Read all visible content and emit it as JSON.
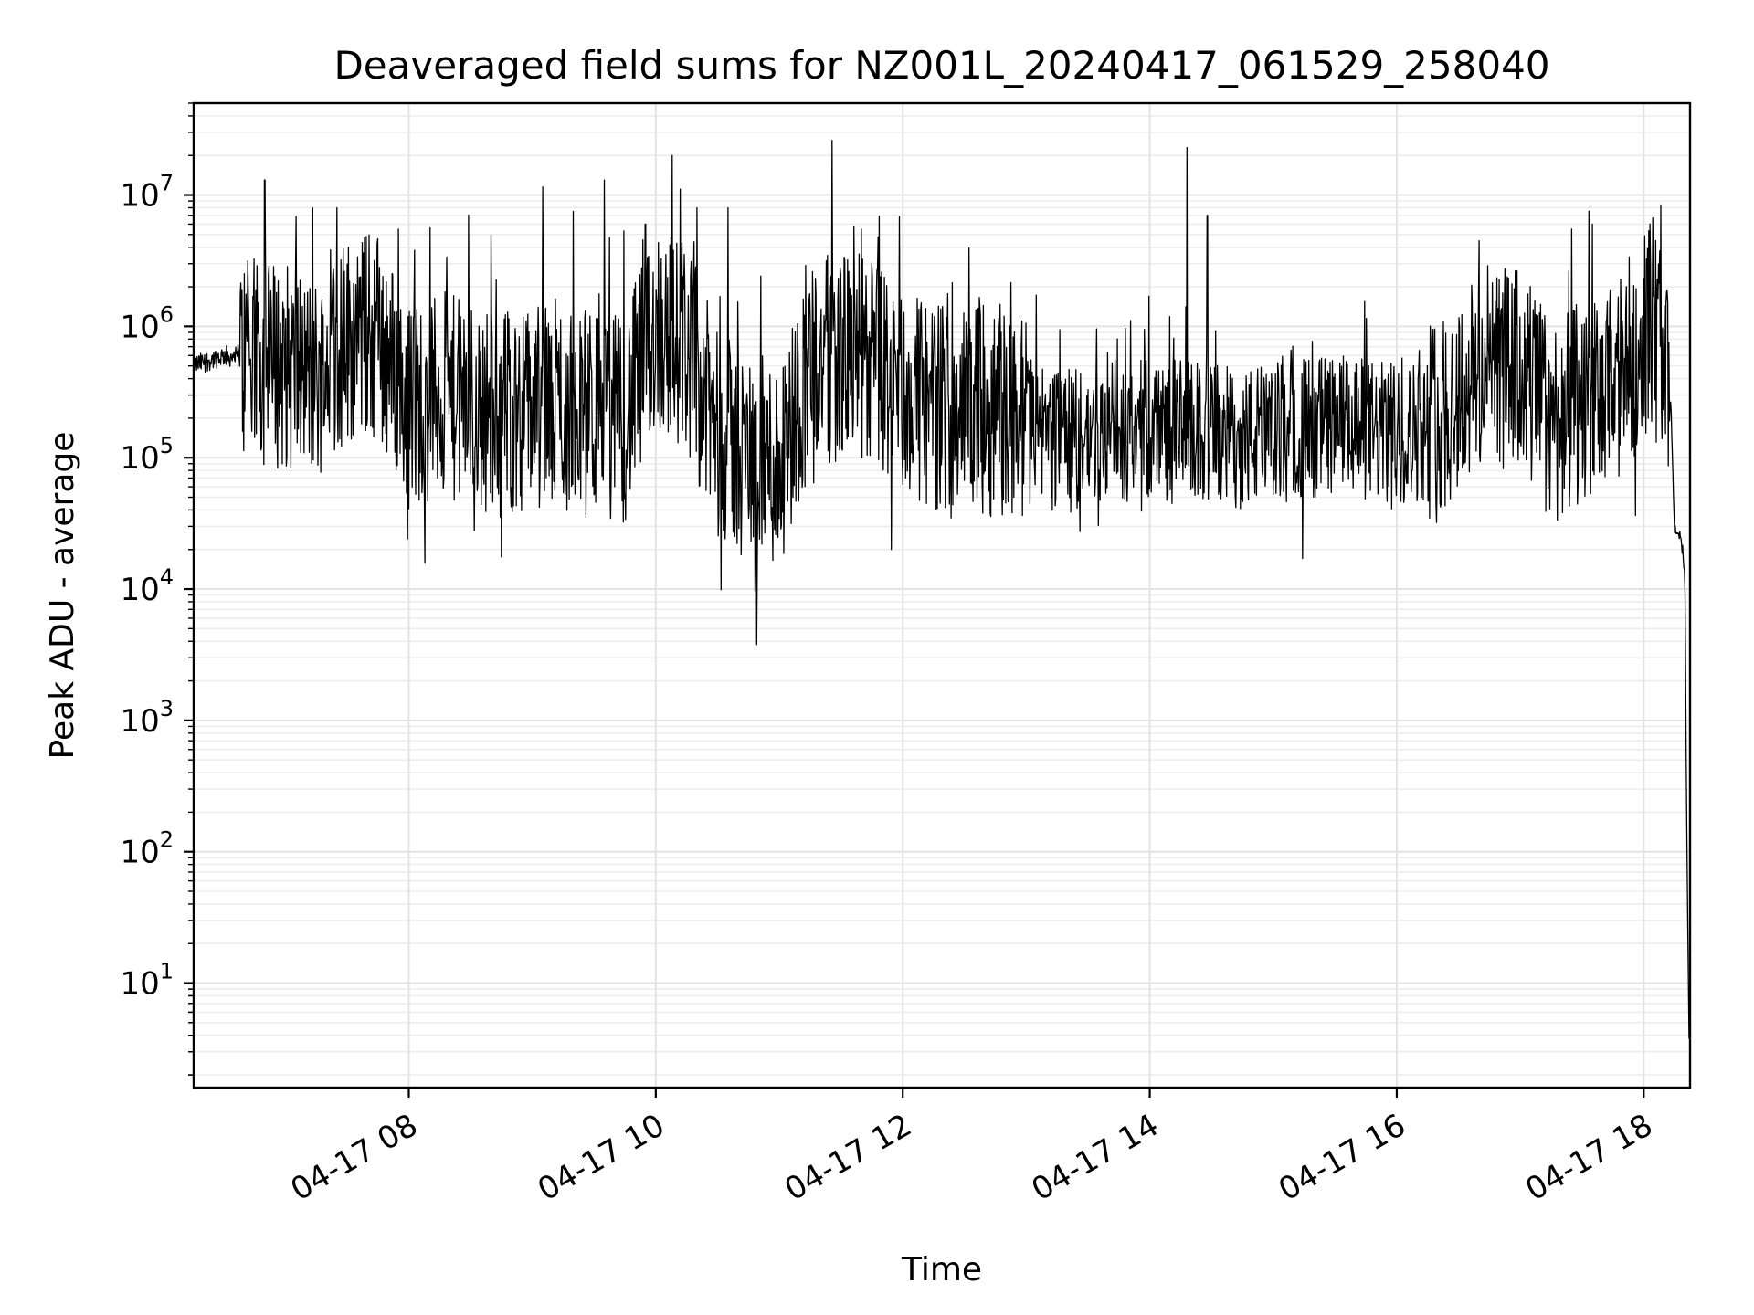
{
  "chart_data": {
    "type": "line",
    "title": "Deaveraged field sums for NZ001L_20240417_061529_258040",
    "xlabel": "Time",
    "ylabel": "Peak ADU - average",
    "yscale": "log",
    "ylim": [
      1.6,
      50000000
    ],
    "xlim": [
      "2024-04-17 06:15:29",
      "2024-04-17 18:22:30"
    ],
    "grid": true,
    "x_ticks": [
      "04-17 08",
      "04-17 10",
      "04-17 12",
      "04-17 14",
      "04-17 16",
      "04-17 18"
    ],
    "x_tick_times": [
      "2024-04-17 08:00",
      "2024-04-17 10:00",
      "2024-04-17 12:00",
      "2024-04-17 14:00",
      "2024-04-17 16:00",
      "2024-04-17 18:00"
    ],
    "y_ticks": [
      {
        "base": "10",
        "exp": "1",
        "value": 10
      },
      {
        "base": "10",
        "exp": "2",
        "value": 100
      },
      {
        "base": "10",
        "exp": "3",
        "value": 1000
      },
      {
        "base": "10",
        "exp": "4",
        "value": 10000
      },
      {
        "base": "10",
        "exp": "5",
        "value": 100000
      },
      {
        "base": "10",
        "exp": "6",
        "value": 1000000
      },
      {
        "base": "10",
        "exp": "7",
        "value": 10000000
      }
    ],
    "series": [
      {
        "color": "#000000",
        "points": [
          [
            "2024-04-17 06:15",
            500000
          ],
          [
            "2024-04-17 06:30",
            600000
          ],
          [
            "2024-04-17 06:45",
            550000
          ],
          [
            "2024-04-17 07:00",
            500000
          ],
          [
            "2024-04-17 07:15",
            400000
          ],
          [
            "2024-04-17 07:30",
            800000
          ],
          [
            "2024-04-17 07:45",
            900000
          ],
          [
            "2024-04-17 08:00",
            250000
          ],
          [
            "2024-04-17 08:15",
            300000
          ],
          [
            "2024-04-17 08:30",
            250000
          ],
          [
            "2024-04-17 08:45",
            220000
          ],
          [
            "2024-04-17 09:00",
            250000
          ],
          [
            "2024-04-17 09:15",
            220000
          ],
          [
            "2024-04-17 09:30",
            220000
          ],
          [
            "2024-04-17 09:45",
            200000
          ],
          [
            "2024-04-17 10:00",
            1000000
          ],
          [
            "2024-04-17 10:15",
            700000
          ],
          [
            "2024-04-17 10:30",
            150000
          ],
          [
            "2024-04-17 10:45",
            100000
          ],
          [
            "2024-04-17 11:00",
            90000
          ],
          [
            "2024-04-17 11:15",
            500000
          ],
          [
            "2024-04-17 11:30",
            600000
          ],
          [
            "2024-04-17 11:45",
            550000
          ],
          [
            "2024-04-17 12:00",
            300000
          ],
          [
            "2024-04-17 12:15",
            250000
          ],
          [
            "2024-04-17 12:30",
            250000
          ],
          [
            "2024-04-17 12:45",
            220000
          ],
          [
            "2024-04-17 13:00",
            200000
          ],
          [
            "2024-04-17 13:15",
            130000
          ],
          [
            "2024-04-17 13:30",
            140000
          ],
          [
            "2024-04-17 13:45",
            160000
          ],
          [
            "2024-04-17 14:00",
            170000
          ],
          [
            "2024-04-17 14:15",
            160000
          ],
          [
            "2024-04-17 14:30",
            150000
          ],
          [
            "2024-04-17 14:45",
            140000
          ],
          [
            "2024-04-17 15:00",
            150000
          ],
          [
            "2024-04-17 15:15",
            170000
          ],
          [
            "2024-04-17 15:30",
            180000
          ],
          [
            "2024-04-17 15:45",
            160000
          ],
          [
            "2024-04-17 16:00",
            150000
          ],
          [
            "2024-04-17 16:15",
            170000
          ],
          [
            "2024-04-17 16:30",
            300000
          ],
          [
            "2024-04-17 16:45",
            500000
          ],
          [
            "2024-04-17 17:00",
            450000
          ],
          [
            "2024-04-17 17:15",
            200000
          ],
          [
            "2024-04-17 17:30",
            220000
          ],
          [
            "2024-04-17 17:45",
            300000
          ],
          [
            "2024-04-17 18:00",
            900000
          ],
          [
            "2024-04-17 18:05",
            1200000
          ],
          [
            "2024-04-17 18:10",
            700000
          ],
          [
            "2024-04-17 18:13",
            300000
          ],
          [
            "2024-04-17 18:15",
            28000
          ],
          [
            "2024-04-17 18:18",
            25000
          ],
          [
            "2024-04-17 18:20",
            12000
          ],
          [
            "2024-04-17 18:21",
            100
          ],
          [
            "2024-04-17 18:22",
            4
          ]
        ]
      }
    ],
    "spikes": [
      [
        "2024-04-17 06:50",
        13000000
      ],
      [
        "2024-04-17 07:25",
        8000000
      ],
      [
        "2024-04-17 07:55",
        5500000
      ],
      [
        "2024-04-17 08:40",
        5000000
      ],
      [
        "2024-04-17 09:05",
        11500000
      ],
      [
        "2024-04-17 09:20",
        7500000
      ],
      [
        "2024-04-17 09:35",
        13000000
      ],
      [
        "2024-04-17 09:55",
        6000000
      ],
      [
        "2024-04-17 10:08",
        20000000
      ],
      [
        "2024-04-17 10:20",
        8000000
      ],
      [
        "2024-04-17 10:35",
        8000000
      ],
      [
        "2024-04-17 11:40",
        5500000
      ],
      [
        "2024-04-17 14:18",
        23000000
      ],
      [
        "2024-04-17 14:28",
        7000000
      ],
      [
        "2024-04-17 17:25",
        5500000
      ],
      [
        "2024-04-17 17:35",
        6000000
      ]
    ]
  }
}
